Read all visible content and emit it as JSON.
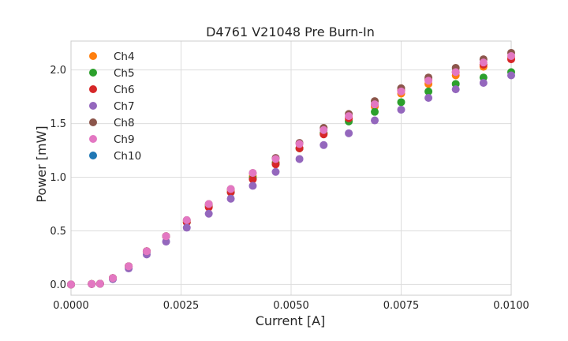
{
  "chart_data": {
    "type": "scatter",
    "title": "D4761 V21048 Pre Burn-In",
    "xlabel": "Current [A]",
    "ylabel": "Power [mW]",
    "xlim": [
      0.0,
      0.01
    ],
    "ylim": [
      -0.1,
      2.27
    ],
    "xticks": [
      0.0,
      0.0025,
      0.005,
      0.0075,
      0.01
    ],
    "xtick_labels": [
      "0.0000",
      "0.0025",
      "0.0050",
      "0.0075",
      "0.0100"
    ],
    "yticks": [
      0.0,
      0.5,
      1.0,
      1.5,
      2.0
    ],
    "ytick_labels": [
      "0.0",
      "0.5",
      "1.0",
      "1.5",
      "2.0"
    ],
    "grid": true,
    "legend_position": "top-left",
    "x": [
      0.0,
      0.00047,
      0.00066,
      0.00095,
      0.00131,
      0.00172,
      0.00216,
      0.00263,
      0.00313,
      0.00363,
      0.00413,
      0.00465,
      0.00519,
      0.00574,
      0.00631,
      0.0069,
      0.0075,
      0.00812,
      0.00874,
      0.00937,
      0.01
    ],
    "series": [
      {
        "name": "Ch4",
        "color": "#ff7f0e",
        "values": [
          0.0,
          0.005,
          0.007,
          0.06,
          0.17,
          0.31,
          0.45,
          0.59,
          0.74,
          0.88,
          1.01,
          1.14,
          1.27,
          1.41,
          1.53,
          1.66,
          1.78,
          1.87,
          1.95,
          2.03,
          2.11
        ]
      },
      {
        "name": "Ch5",
        "color": "#2ca02c",
        "values": [
          0.0,
          0.005,
          0.007,
          0.06,
          0.17,
          0.31,
          0.45,
          0.58,
          0.73,
          0.86,
          0.99,
          1.13,
          1.27,
          1.41,
          1.52,
          1.61,
          1.7,
          1.8,
          1.87,
          1.93,
          1.98
        ]
      },
      {
        "name": "Ch6",
        "color": "#d62728",
        "values": [
          0.0,
          0.005,
          0.007,
          0.06,
          0.17,
          0.31,
          0.45,
          0.58,
          0.72,
          0.86,
          0.98,
          1.12,
          1.27,
          1.4,
          1.55,
          1.68,
          1.81,
          1.91,
          1.98,
          2.05,
          2.1
        ]
      },
      {
        "name": "Ch7",
        "color": "#9467bd",
        "values": [
          0.0,
          0.004,
          0.006,
          0.05,
          0.15,
          0.28,
          0.4,
          0.53,
          0.66,
          0.8,
          0.92,
          1.05,
          1.17,
          1.3,
          1.41,
          1.53,
          1.63,
          1.74,
          1.82,
          1.88,
          1.95
        ]
      },
      {
        "name": "Ch8",
        "color": "#8c564b",
        "values": [
          0.0,
          0.005,
          0.007,
          0.06,
          0.17,
          0.31,
          0.45,
          0.6,
          0.75,
          0.89,
          1.04,
          1.18,
          1.32,
          1.46,
          1.59,
          1.71,
          1.83,
          1.93,
          2.02,
          2.1,
          2.16
        ]
      },
      {
        "name": "Ch9",
        "color": "#e377c2",
        "values": [
          0.0,
          0.005,
          0.007,
          0.06,
          0.17,
          0.31,
          0.45,
          0.6,
          0.75,
          0.89,
          1.04,
          1.17,
          1.31,
          1.44,
          1.57,
          1.68,
          1.8,
          1.9,
          1.98,
          2.07,
          2.13
        ]
      },
      {
        "name": "Ch10",
        "color": "#1f77b4",
        "values": []
      }
    ]
  }
}
